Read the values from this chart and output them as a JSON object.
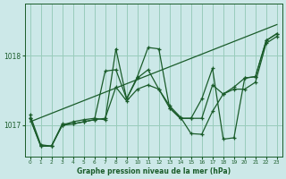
{
  "xlabel": "Graphe pression niveau de la mer (hPa)",
  "bg_color": "#cce8e8",
  "plot_bg_color": "#cce8e8",
  "grid_color": "#99ccbb",
  "line_color": "#1a5c2a",
  "xlim": [
    -0.5,
    23.5
  ],
  "ylim": [
    1016.55,
    1018.75
  ],
  "yticks": [
    1017,
    1018
  ],
  "xticks": [
    0,
    1,
    2,
    3,
    4,
    5,
    6,
    7,
    8,
    9,
    10,
    11,
    12,
    13,
    14,
    15,
    16,
    17,
    18,
    19,
    20,
    21,
    22,
    23
  ],
  "trend_x": [
    0,
    23
  ],
  "trend_y": [
    1017.05,
    1018.45
  ],
  "series1": [
    1017.15,
    1016.72,
    1016.7,
    1017.02,
    1017.02,
    1017.05,
    1017.08,
    1017.1,
    1017.55,
    1017.35,
    1017.52,
    1017.58,
    1017.52,
    1017.28,
    1017.12,
    1016.88,
    1016.87,
    1017.2,
    1017.45,
    1017.52,
    1017.52,
    1017.62,
    1018.18,
    1018.28
  ],
  "series2": [
    1017.1,
    1016.7,
    1016.7,
    1017.0,
    1017.02,
    1017.05,
    1017.08,
    1017.78,
    1017.8,
    1017.38,
    1017.68,
    1017.8,
    1017.52,
    1017.25,
    1017.1,
    1017.1,
    1017.1,
    1017.58,
    1017.45,
    1017.55,
    1017.68,
    1017.7,
    1018.22,
    1018.32
  ],
  "series3": [
    1017.1,
    1016.7,
    1016.7,
    1017.0,
    1017.05,
    1017.08,
    1017.1,
    1017.08,
    1018.1,
    1017.38,
    1017.7,
    1018.12,
    1018.1,
    1017.25,
    1017.1,
    1017.1,
    1017.38,
    1017.82,
    1016.8,
    1016.82,
    1017.68,
    1017.7,
    1018.22,
    1018.32
  ]
}
